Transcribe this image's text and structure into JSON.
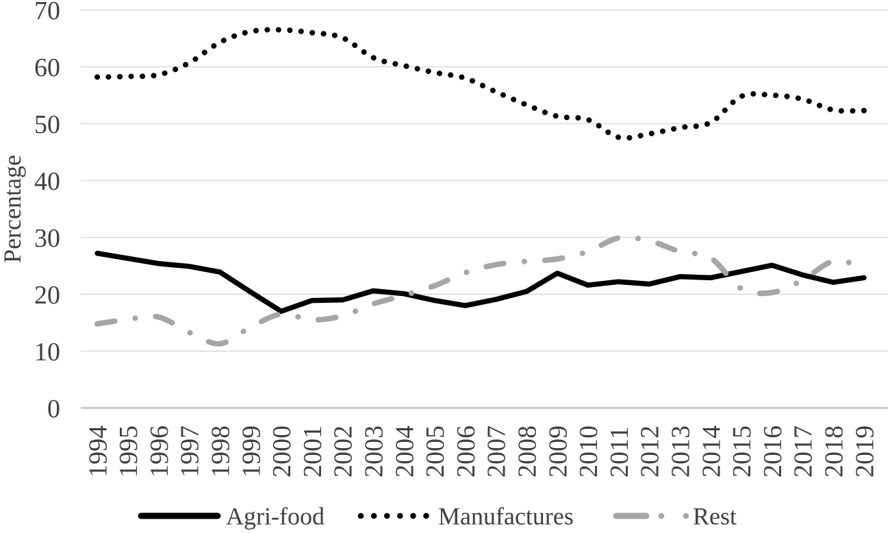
{
  "chart_data": {
    "type": "line",
    "title": "",
    "xlabel": "",
    "ylabel": "Percentage",
    "x_categories": [
      "1994",
      "1995",
      "1996",
      "1997",
      "1998",
      "1999",
      "2000",
      "2001",
      "2002",
      "2003",
      "2004",
      "2005",
      "2006",
      "2007",
      "2008",
      "2009",
      "2010",
      "2011",
      "2012",
      "2013",
      "2014",
      "2015",
      "2016",
      "2017",
      "2018",
      "2019"
    ],
    "y_ticks": [
      0,
      10,
      20,
      30,
      40,
      50,
      60,
      70
    ],
    "ylim": [
      0,
      70
    ],
    "grid": "horizontal-only",
    "legend_position": "bottom-center",
    "series": [
      {
        "name": "Agri-food",
        "line_style": "solid",
        "smooth": false,
        "color": "#000000",
        "values": [
          27.2,
          26.3,
          25.4,
          24.9,
          23.9,
          20.4,
          17.0,
          18.9,
          19.0,
          20.6,
          20.1,
          18.9,
          18.0,
          19.1,
          20.5,
          23.7,
          21.6,
          22.2,
          21.8,
          23.1,
          22.9,
          24.0,
          25.1,
          23.4,
          22.1,
          22.9
        ]
      },
      {
        "name": "Manufactures",
        "line_style": "dotted",
        "smooth": true,
        "color": "#000000",
        "values": [
          58.2,
          58.3,
          58.6,
          60.7,
          64.3,
          66.2,
          66.5,
          66.0,
          65.1,
          61.6,
          60.2,
          59.0,
          58.0,
          55.6,
          53.3,
          51.3,
          50.7,
          47.6,
          48.2,
          49.3,
          50.2,
          54.8,
          55.0,
          54.3,
          52.4,
          52.3
        ]
      },
      {
        "name": "Rest",
        "line_style": "dash-dot",
        "smooth": true,
        "color": "#a6a6a6",
        "values": [
          14.8,
          15.6,
          16.0,
          13.3,
          11.3,
          14.2,
          16.5,
          15.5,
          16.2,
          18.3,
          19.8,
          21.5,
          23.8,
          25.2,
          25.8,
          26.2,
          27.5,
          29.9,
          29.4,
          27.5,
          26.4,
          21.0,
          20.3,
          22.5,
          25.8,
          24.8
        ]
      }
    ]
  },
  "styles": {
    "background": "#ffffff",
    "gridline_color": "#d9d9d9",
    "axis_line_color": "#bfbfbf",
    "text_color": "#404040"
  }
}
